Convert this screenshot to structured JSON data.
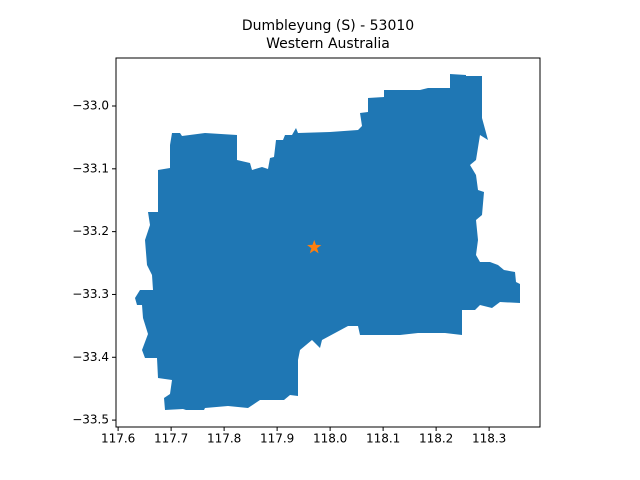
{
  "chart_data": {
    "type": "map",
    "title": "Dumbleyung (S) - 53010",
    "subtitle": "Western Australia",
    "xlim": [
      117.596,
      118.396
    ],
    "ylim": [
      -33.511,
      -32.9236
    ],
    "xticks": [
      117.6,
      117.7,
      117.8,
      117.9,
      {
        "value": 118,
        "label": "118.0"
      },
      118.1,
      118.2,
      118.3
    ],
    "yticks": [
      {
        "value": -33.5,
        "label": "−33.5"
      },
      {
        "value": -33.4,
        "label": "−33.4"
      },
      {
        "value": -33.3,
        "label": "−33.3"
      },
      {
        "value": -33.2,
        "label": "−33.2"
      },
      {
        "value": -33.1,
        "label": "−33.1"
      },
      {
        "value": -33.0,
        "label": "−33.0"
      }
    ],
    "region_color": "#1f77b4",
    "points": {
      "x": [
        117.97
      ],
      "y": [
        -33.225
      ],
      "color": "#ff7f0e"
    }
  }
}
